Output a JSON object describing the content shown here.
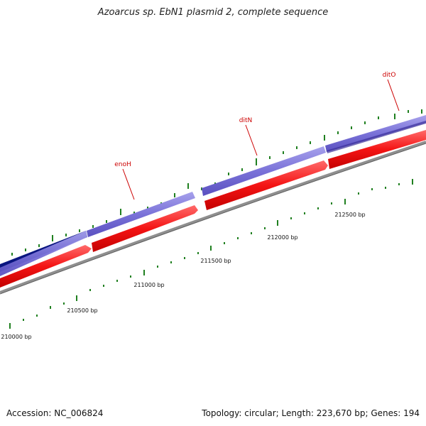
{
  "title": "Azoarcus sp. EbN1 plasmid 2, complete sequence",
  "footer": {
    "accession": "Accession: NC_006824",
    "summary": "Topology: circular; Length: 223,670 bp; Genes: 194"
  },
  "colors": {
    "forward_strand": "#7a72d8",
    "forward_strand_dark": "#0a1580",
    "reverse_strand": "#f41414",
    "backbone": "#8f8f8f",
    "tick": "#208020",
    "label": "#cc0000"
  },
  "genes": [
    {
      "label": "enoH"
    },
    {
      "label": "ditN"
    },
    {
      "label": "ditO"
    }
  ],
  "scale_labels": [
    "210000 bp",
    "210500 bp",
    "211000 bp",
    "211500 bp",
    "212000 bp",
    "212500 bp"
  ]
}
